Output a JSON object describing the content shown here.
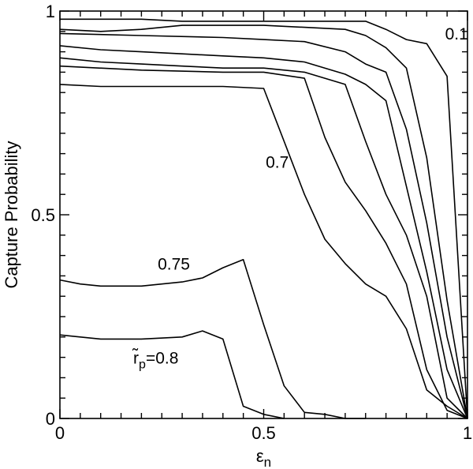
{
  "chart_data": {
    "type": "line",
    "title": "",
    "xlabel": "εn",
    "ylabel": "Capture Probability",
    "xlim": [
      0,
      1
    ],
    "ylim": [
      0,
      1
    ],
    "x_ticks": [
      "0",
      "0.5",
      "1"
    ],
    "y_ticks": [
      "0",
      "0.5",
      "1"
    ],
    "grid": false,
    "legend": "none",
    "series": [
      {
        "name": "0.1",
        "points": [
          [
            0,
            0.98
          ],
          [
            0.1,
            0.98
          ],
          [
            0.2,
            0.98
          ],
          [
            0.3,
            0.975
          ],
          [
            0.4,
            0.975
          ],
          [
            0.5,
            0.975
          ],
          [
            0.6,
            0.975
          ],
          [
            0.7,
            0.975
          ],
          [
            0.75,
            0.975
          ],
          [
            0.8,
            0.955
          ],
          [
            0.85,
            0.93
          ],
          [
            0.9,
            0.92
          ],
          [
            0.95,
            0.84
          ],
          [
            1.0,
            0.0
          ]
        ]
      },
      {
        "name": "",
        "points": [
          [
            0,
            0.955
          ],
          [
            0.1,
            0.95
          ],
          [
            0.2,
            0.955
          ],
          [
            0.3,
            0.965
          ],
          [
            0.4,
            0.965
          ],
          [
            0.5,
            0.965
          ],
          [
            0.6,
            0.96
          ],
          [
            0.7,
            0.955
          ],
          [
            0.75,
            0.94
          ],
          [
            0.8,
            0.91
          ],
          [
            0.85,
            0.86
          ],
          [
            0.9,
            0.64
          ],
          [
            0.95,
            0.29
          ],
          [
            1.0,
            0.0
          ]
        ]
      },
      {
        "name": "",
        "points": [
          [
            0,
            0.945
          ],
          [
            0.2,
            0.94
          ],
          [
            0.4,
            0.935
          ],
          [
            0.5,
            0.93
          ],
          [
            0.6,
            0.925
          ],
          [
            0.7,
            0.9
          ],
          [
            0.75,
            0.87
          ],
          [
            0.8,
            0.85
          ],
          [
            0.85,
            0.71
          ],
          [
            0.9,
            0.48
          ],
          [
            0.95,
            0.2
          ],
          [
            1.0,
            0.0
          ]
        ]
      },
      {
        "name": "",
        "points": [
          [
            0,
            0.915
          ],
          [
            0.1,
            0.905
          ],
          [
            0.2,
            0.9
          ],
          [
            0.3,
            0.895
          ],
          [
            0.4,
            0.89
          ],
          [
            0.5,
            0.885
          ],
          [
            0.6,
            0.875
          ],
          [
            0.7,
            0.845
          ],
          [
            0.75,
            0.82
          ],
          [
            0.8,
            0.78
          ],
          [
            0.85,
            0.57
          ],
          [
            0.9,
            0.36
          ],
          [
            0.95,
            0.12
          ],
          [
            1.0,
            0.0
          ]
        ]
      },
      {
        "name": "",
        "points": [
          [
            0,
            0.885
          ],
          [
            0.1,
            0.875
          ],
          [
            0.2,
            0.87
          ],
          [
            0.3,
            0.865
          ],
          [
            0.4,
            0.86
          ],
          [
            0.5,
            0.86
          ],
          [
            0.6,
            0.85
          ],
          [
            0.7,
            0.82
          ],
          [
            0.75,
            0.68
          ],
          [
            0.8,
            0.55
          ],
          [
            0.85,
            0.45
          ],
          [
            0.9,
            0.3
          ],
          [
            0.95,
            0.05
          ],
          [
            1.0,
            0.0
          ]
        ]
      },
      {
        "name": "",
        "points": [
          [
            0,
            0.865
          ],
          [
            0.2,
            0.855
          ],
          [
            0.4,
            0.85
          ],
          [
            0.5,
            0.85
          ],
          [
            0.6,
            0.835
          ],
          [
            0.65,
            0.69
          ],
          [
            0.7,
            0.58
          ],
          [
            0.75,
            0.51
          ],
          [
            0.8,
            0.43
          ],
          [
            0.85,
            0.33
          ],
          [
            0.9,
            0.12
          ],
          [
            0.95,
            0.02
          ],
          [
            1.0,
            0.0
          ]
        ]
      },
      {
        "name": "0.7",
        "points": [
          [
            0,
            0.82
          ],
          [
            0.1,
            0.815
          ],
          [
            0.2,
            0.815
          ],
          [
            0.3,
            0.815
          ],
          [
            0.4,
            0.815
          ],
          [
            0.5,
            0.81
          ],
          [
            0.55,
            0.68
          ],
          [
            0.6,
            0.55
          ],
          [
            0.65,
            0.44
          ],
          [
            0.7,
            0.38
          ],
          [
            0.75,
            0.33
          ],
          [
            0.8,
            0.3
          ],
          [
            0.85,
            0.22
          ],
          [
            0.9,
            0.07
          ],
          [
            0.95,
            0.03
          ],
          [
            1.0,
            0.0
          ]
        ]
      },
      {
        "name": "0.75",
        "points": [
          [
            0,
            0.34
          ],
          [
            0.05,
            0.33
          ],
          [
            0.1,
            0.325
          ],
          [
            0.2,
            0.325
          ],
          [
            0.3,
            0.335
          ],
          [
            0.35,
            0.345
          ],
          [
            0.4,
            0.37
          ],
          [
            0.45,
            0.39
          ],
          [
            0.5,
            0.23
          ],
          [
            0.55,
            0.08
          ],
          [
            0.6,
            0.015
          ],
          [
            0.65,
            0.01
          ],
          [
            0.7,
            0.0
          ],
          [
            0.75,
            0.0
          ]
        ]
      },
      {
        "name": "r̃p=0.8",
        "points": [
          [
            0,
            0.205
          ],
          [
            0.05,
            0.2
          ],
          [
            0.1,
            0.195
          ],
          [
            0.2,
            0.195
          ],
          [
            0.3,
            0.2
          ],
          [
            0.35,
            0.215
          ],
          [
            0.4,
            0.195
          ],
          [
            0.45,
            0.03
          ],
          [
            0.5,
            0.01
          ],
          [
            0.55,
            0.0
          ]
        ]
      }
    ],
    "curve_labels": [
      {
        "text": "0.1",
        "x": 0.945,
        "y": 0.93
      },
      {
        "text": "0.7",
        "x": 0.505,
        "y": 0.615
      },
      {
        "text": "0.75",
        "x": 0.24,
        "y": 0.365
      },
      {
        "text": "r̃p=0.8",
        "x": 0.18,
        "y": 0.135
      }
    ]
  }
}
